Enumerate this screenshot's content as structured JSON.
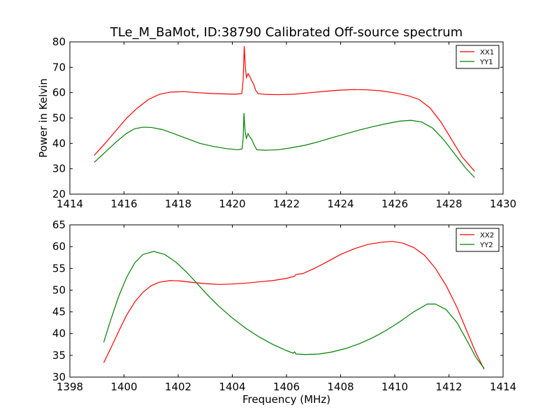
{
  "figure": {
    "title": "TLe_M_BaMot, ID:38790 Calibrated Off-source spectrum"
  },
  "chart_data": [
    {
      "type": "line",
      "title": "TLe_M_BaMot, ID:38790 Calibrated Off-source spectrum",
      "xlabel": "",
      "ylabel": "Power in Kelvin",
      "xlim": [
        1414,
        1430
      ],
      "ylim": [
        20,
        80
      ],
      "xticks": [
        1414,
        1416,
        1418,
        1420,
        1422,
        1424,
        1426,
        1428,
        1430
      ],
      "yticks": [
        20,
        30,
        40,
        50,
        60,
        70,
        80
      ],
      "legend": "top-right",
      "grid": false,
      "series": [
        {
          "name": "XX1",
          "color": "#ff0000",
          "points": [
            [
              1414.9,
              35.3
            ],
            [
              1415.3,
              40.0
            ],
            [
              1415.7,
              45.0
            ],
            [
              1416.1,
              50.0
            ],
            [
              1416.5,
              54.0
            ],
            [
              1416.9,
              57.3
            ],
            [
              1417.3,
              59.3
            ],
            [
              1417.7,
              60.2
            ],
            [
              1418.2,
              60.4
            ],
            [
              1418.7,
              60.0
            ],
            [
              1419.2,
              59.7
            ],
            [
              1419.7,
              59.5
            ],
            [
              1420.1,
              59.4
            ],
            [
              1420.35,
              59.6
            ],
            [
              1420.4,
              65.0
            ],
            [
              1420.44,
              78.3
            ],
            [
              1420.48,
              70.0
            ],
            [
              1420.52,
              66.0
            ],
            [
              1420.58,
              67.5
            ],
            [
              1420.64,
              66.5
            ],
            [
              1420.7,
              65.0
            ],
            [
              1420.78,
              63.5
            ],
            [
              1420.86,
              61.0
            ],
            [
              1420.95,
              59.6
            ],
            [
              1421.2,
              59.3
            ],
            [
              1421.7,
              59.2
            ],
            [
              1422.3,
              59.4
            ],
            [
              1422.9,
              60.0
            ],
            [
              1423.5,
              60.6
            ],
            [
              1424.0,
              61.0
            ],
            [
              1424.5,
              61.2
            ],
            [
              1425.0,
              61.1
            ],
            [
              1425.5,
              60.7
            ],
            [
              1426.0,
              59.9
            ],
            [
              1426.5,
              58.8
            ],
            [
              1426.9,
              57.3
            ],
            [
              1427.3,
              54.0
            ],
            [
              1427.7,
              48.5
            ],
            [
              1428.1,
              41.5
            ],
            [
              1428.5,
              34.5
            ],
            [
              1428.95,
              29.0
            ]
          ]
        },
        {
          "name": "YY1",
          "color": "#008000",
          "points": [
            [
              1414.9,
              32.5
            ],
            [
              1415.3,
              36.5
            ],
            [
              1415.7,
              40.5
            ],
            [
              1416.1,
              44.0
            ],
            [
              1416.4,
              45.8
            ],
            [
              1416.7,
              46.4
            ],
            [
              1417.0,
              46.3
            ],
            [
              1417.4,
              45.5
            ],
            [
              1417.8,
              44.0
            ],
            [
              1418.3,
              42.0
            ],
            [
              1418.8,
              40.0
            ],
            [
              1419.3,
              38.8
            ],
            [
              1419.8,
              37.9
            ],
            [
              1420.2,
              37.5
            ],
            [
              1420.36,
              37.8
            ],
            [
              1420.4,
              42.0
            ],
            [
              1420.43,
              52.0
            ],
            [
              1420.47,
              45.0
            ],
            [
              1420.52,
              42.0
            ],
            [
              1420.58,
              43.8
            ],
            [
              1420.65,
              42.5
            ],
            [
              1420.72,
              41.5
            ],
            [
              1420.8,
              39.5
            ],
            [
              1420.9,
              37.5
            ],
            [
              1421.2,
              37.3
            ],
            [
              1421.7,
              37.5
            ],
            [
              1422.2,
              38.3
            ],
            [
              1422.7,
              39.3
            ],
            [
              1423.2,
              40.7
            ],
            [
              1423.7,
              42.3
            ],
            [
              1424.2,
              43.8
            ],
            [
              1424.7,
              45.3
            ],
            [
              1425.2,
              46.6
            ],
            [
              1425.7,
              47.8
            ],
            [
              1426.2,
              48.8
            ],
            [
              1426.6,
              49.1
            ],
            [
              1427.0,
              48.4
            ],
            [
              1427.4,
              46.0
            ],
            [
              1427.8,
              41.5
            ],
            [
              1428.2,
              36.0
            ],
            [
              1428.6,
              30.5
            ],
            [
              1428.95,
              26.5
            ]
          ]
        }
      ]
    },
    {
      "type": "line",
      "title": "",
      "xlabel": "Frequency (MHz)",
      "ylabel": "",
      "xlim": [
        1398,
        1414
      ],
      "ylim": [
        30,
        65
      ],
      "xticks": [
        1398,
        1400,
        1402,
        1404,
        1406,
        1408,
        1410,
        1412,
        1414
      ],
      "yticks": [
        30,
        35,
        40,
        45,
        50,
        55,
        60,
        65
      ],
      "legend": "top-right",
      "grid": false,
      "series": [
        {
          "name": "XX2",
          "color": "#ff0000",
          "points": [
            [
              1399.25,
              33.3
            ],
            [
              1399.5,
              36.5
            ],
            [
              1399.8,
              40.5
            ],
            [
              1400.1,
              44.3
            ],
            [
              1400.4,
              47.3
            ],
            [
              1400.7,
              49.5
            ],
            [
              1401.0,
              51.0
            ],
            [
              1401.3,
              51.8
            ],
            [
              1401.7,
              52.2
            ],
            [
              1402.1,
              52.1
            ],
            [
              1402.5,
              51.8
            ],
            [
              1403.0,
              51.5
            ],
            [
              1403.5,
              51.3
            ],
            [
              1404.0,
              51.4
            ],
            [
              1404.5,
              51.6
            ],
            [
              1405.0,
              51.9
            ],
            [
              1405.5,
              52.2
            ],
            [
              1406.0,
              52.7
            ],
            [
              1406.3,
              53.2
            ],
            [
              1406.35,
              53.6
            ],
            [
              1406.6,
              53.8
            ],
            [
              1407.0,
              54.9
            ],
            [
              1407.5,
              56.5
            ],
            [
              1408.0,
              58.2
            ],
            [
              1408.5,
              59.5
            ],
            [
              1409.0,
              60.5
            ],
            [
              1409.5,
              61.0
            ],
            [
              1409.9,
              61.2
            ],
            [
              1410.3,
              60.8
            ],
            [
              1410.7,
              59.8
            ],
            [
              1411.1,
              58.0
            ],
            [
              1411.5,
              55.0
            ],
            [
              1411.9,
              51.0
            ],
            [
              1412.3,
              46.0
            ],
            [
              1412.7,
              40.0
            ],
            [
              1413.0,
              35.5
            ],
            [
              1413.3,
              31.8
            ]
          ]
        },
        {
          "name": "YY2",
          "color": "#008000",
          "points": [
            [
              1399.25,
              38.0
            ],
            [
              1399.5,
              43.0
            ],
            [
              1399.8,
              48.5
            ],
            [
              1400.1,
              53.0
            ],
            [
              1400.4,
              56.3
            ],
            [
              1400.7,
              58.2
            ],
            [
              1401.1,
              58.9
            ],
            [
              1401.5,
              58.2
            ],
            [
              1401.9,
              56.5
            ],
            [
              1402.3,
              54.2
            ],
            [
              1402.7,
              51.5
            ],
            [
              1403.1,
              48.8
            ],
            [
              1403.5,
              46.3
            ],
            [
              1404.0,
              43.6
            ],
            [
              1404.5,
              41.2
            ],
            [
              1405.0,
              39.2
            ],
            [
              1405.5,
              37.5
            ],
            [
              1406.0,
              36.1
            ],
            [
              1406.25,
              35.5
            ],
            [
              1406.3,
              35.8
            ],
            [
              1406.35,
              35.3
            ],
            [
              1406.7,
              35.2
            ],
            [
              1407.2,
              35.3
            ],
            [
              1407.7,
              35.8
            ],
            [
              1408.2,
              36.6
            ],
            [
              1408.7,
              37.7
            ],
            [
              1409.2,
              39.1
            ],
            [
              1409.7,
              40.8
            ],
            [
              1410.2,
              42.8
            ],
            [
              1410.7,
              45.0
            ],
            [
              1411.2,
              46.8
            ],
            [
              1411.5,
              46.8
            ],
            [
              1411.9,
              45.5
            ],
            [
              1412.3,
              42.5
            ],
            [
              1412.7,
              38.0
            ],
            [
              1413.0,
              34.5
            ],
            [
              1413.3,
              32.0
            ]
          ]
        }
      ]
    }
  ]
}
